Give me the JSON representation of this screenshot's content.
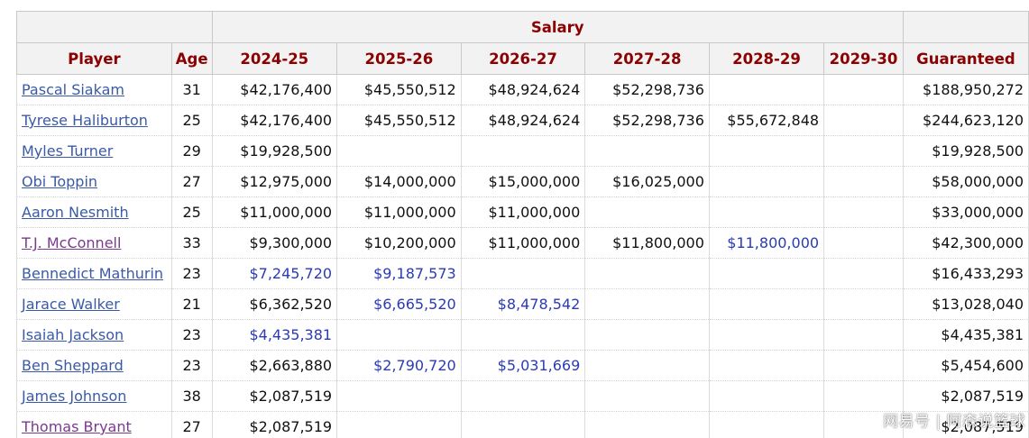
{
  "table": {
    "group_header": "Salary",
    "columns": [
      "Player",
      "Age",
      "2024-25",
      "2025-26",
      "2026-27",
      "2027-28",
      "2028-29",
      "2029-30",
      "Guaranteed"
    ],
    "rows": [
      {
        "player": "Pascal Siakam",
        "age": "31",
        "s2425": "$42,176,400",
        "s2526": "$45,550,512",
        "s2627": "$48,924,624",
        "s2728": "$52,298,736",
        "s2829": "",
        "s2930": "",
        "guaranteed": "$188,950,272"
      },
      {
        "player": "Tyrese Haliburton",
        "age": "25",
        "s2425": "$42,176,400",
        "s2526": "$45,550,512",
        "s2627": "$48,924,624",
        "s2728": "$52,298,736",
        "s2829": "$55,672,848",
        "s2930": "",
        "guaranteed": "$244,623,120"
      },
      {
        "player": "Myles Turner",
        "age": "29",
        "s2425": "$19,928,500",
        "s2526": "",
        "s2627": "",
        "s2728": "",
        "s2829": "",
        "s2930": "",
        "guaranteed": "$19,928,500"
      },
      {
        "player": "Obi Toppin",
        "age": "27",
        "s2425": "$12,975,000",
        "s2526": "$14,000,000",
        "s2627": "$15,000,000",
        "s2728": "$16,025,000",
        "s2829": "",
        "s2930": "",
        "guaranteed": "$58,000,000"
      },
      {
        "player": "Aaron Nesmith",
        "age": "25",
        "s2425": "$11,000,000",
        "s2526": "$11,000,000",
        "s2627": "$11,000,000",
        "s2728": "",
        "s2829": "",
        "s2930": "",
        "guaranteed": "$33,000,000"
      },
      {
        "player": "T.J. McConnell",
        "age": "33",
        "s2425": "$9,300,000",
        "s2526": "$10,200,000",
        "s2627": "$11,000,000",
        "s2728": "$11,800,000",
        "s2829": "$11,800,000",
        "s2930": "",
        "guaranteed": "$42,300,000"
      },
      {
        "player": "Bennedict Mathurin",
        "age": "23",
        "s2425": "$7,245,720",
        "s2526": "$9,187,573",
        "s2627": "",
        "s2728": "",
        "s2829": "",
        "s2930": "",
        "guaranteed": "$16,433,293"
      },
      {
        "player": "Jarace Walker",
        "age": "21",
        "s2425": "$6,362,520",
        "s2526": "$6,665,520",
        "s2627": "$8,478,542",
        "s2728": "",
        "s2829": "",
        "s2930": "",
        "guaranteed": "$13,028,040"
      },
      {
        "player": "Isaiah Jackson",
        "age": "23",
        "s2425": "$4,435,381",
        "s2526": "",
        "s2627": "",
        "s2728": "",
        "s2829": "",
        "s2930": "",
        "guaranteed": "$4,435,381"
      },
      {
        "player": "Ben Sheppard",
        "age": "23",
        "s2425": "$2,663,880",
        "s2526": "$2,790,720",
        "s2627": "$5,031,669",
        "s2728": "",
        "s2829": "",
        "s2930": "",
        "guaranteed": "$5,454,600"
      },
      {
        "player": "James Johnson",
        "age": "38",
        "s2425": "$2,087,519",
        "s2526": "",
        "s2627": "",
        "s2728": "",
        "s2829": "",
        "s2930": "",
        "guaranteed": "$2,087,519"
      },
      {
        "player": "Thomas Bryant",
        "age": "27",
        "s2425": "$2,087,519",
        "s2526": "",
        "s2627": "",
        "s2728": "",
        "s2829": "",
        "s2930": "",
        "guaranteed": "$2,087,519"
      }
    ]
  },
  "option_cells": [
    [
      "T.J. McConnell",
      "s2829"
    ],
    [
      "Bennedict Mathurin",
      "s2425"
    ],
    [
      "Bennedict Mathurin",
      "s2526"
    ],
    [
      "Jarace Walker",
      "s2526"
    ],
    [
      "Jarace Walker",
      "s2627"
    ],
    [
      "Isaiah Jackson",
      "s2425"
    ],
    [
      "Ben Sheppard",
      "s2526"
    ],
    [
      "Ben Sheppard",
      "s2627"
    ]
  ],
  "visited_links": [
    "T.J. McConnell",
    "Thomas Bryant"
  ],
  "colors": {
    "header_text": "#8b0000",
    "link": "#3a5aa8",
    "link_visited": "#7a3a8f",
    "option_value": "#2a3ab8"
  },
  "watermark": "网易号 | 阿森说篮球"
}
